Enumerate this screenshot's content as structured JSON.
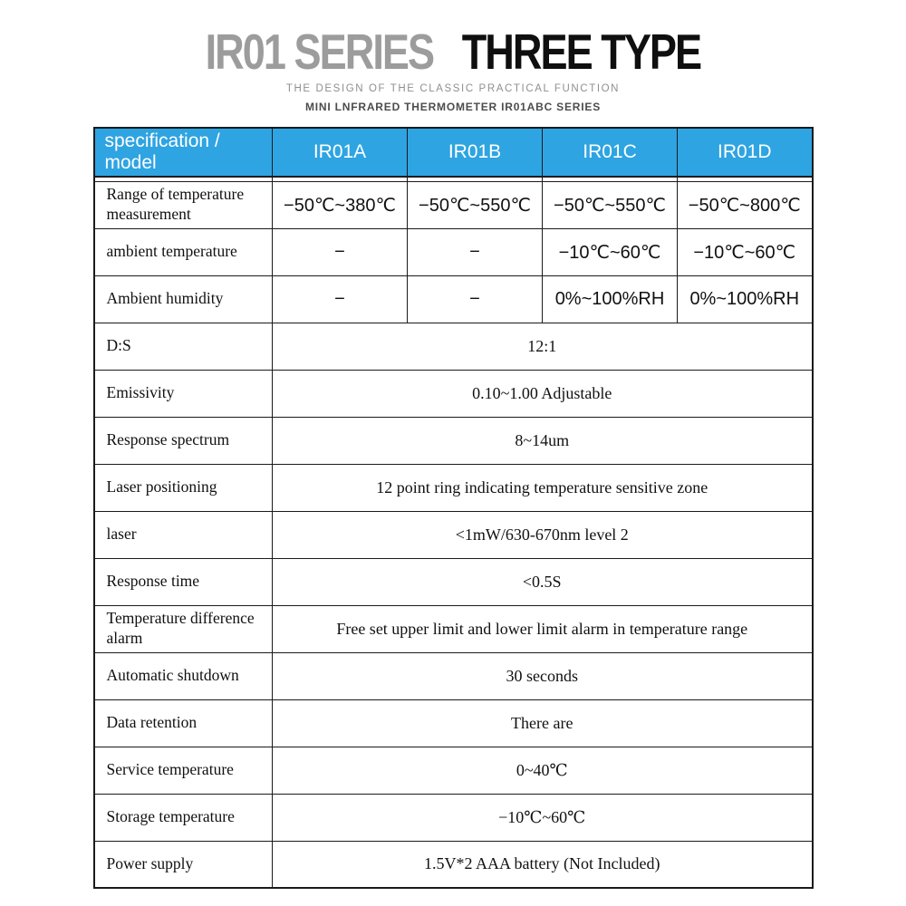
{
  "page": {
    "title_gray": "IR01 SERIES",
    "title_black": "THREE TYPE",
    "subtitle1": "THE DESIGN OF THE CLASSIC PRACTICAL FUNCTION",
    "subtitle2": "MINI LNFRARED THERMOMETER IR01ABC SERIES"
  },
  "colors": {
    "header_bg": "#2ea4e2",
    "header_text": "#ffffff",
    "title_gray": "#9c9c9c",
    "title_black": "#0f0f0f",
    "border": "#1a1a1a"
  },
  "table": {
    "header": {
      "spec_label": "specification / model",
      "models": [
        "IR01A",
        "IR01B",
        "IR01C",
        "IR01D"
      ]
    },
    "rows": [
      {
        "label": "Range of temperature measurement",
        "type": "per_model",
        "values": [
          "−50℃~380℃",
          "−50℃~550℃",
          "−50℃~550℃",
          "−50℃~800℃"
        ]
      },
      {
        "label": "ambient temperature",
        "type": "per_model",
        "values": [
          "−",
          "−",
          "−10℃~60℃",
          "−10℃~60℃"
        ]
      },
      {
        "label": "Ambient humidity",
        "type": "per_model",
        "values": [
          "−",
          "−",
          "0%~100%RH",
          "0%~100%RH"
        ]
      },
      {
        "label": "D:S",
        "type": "span",
        "value": "12:1"
      },
      {
        "label": "Emissivity",
        "type": "span",
        "value": "0.10~1.00 Adjustable"
      },
      {
        "label": "Response spectrum",
        "type": "span",
        "value": "8~14um"
      },
      {
        "label": "Laser positioning",
        "type": "span",
        "value": "12 point ring indicating temperature sensitive zone"
      },
      {
        "label": "laser",
        "type": "span",
        "value": "<1mW/630-670nm  level 2"
      },
      {
        "label": "Response time",
        "type": "span",
        "value": "<0.5S"
      },
      {
        "label": "Temperature difference alarm",
        "type": "span",
        "value": "Free set upper limit and lower limit alarm in temperature range"
      },
      {
        "label": "Automatic shutdown",
        "type": "span",
        "value": "30 seconds"
      },
      {
        "label": "Data retention",
        "type": "span",
        "value": "There are"
      },
      {
        "label": "Service temperature",
        "type": "span",
        "value": "0~40℃"
      },
      {
        "label": "Storage temperature",
        "type": "span",
        "value": "−10℃~60℃"
      },
      {
        "label": "Power supply",
        "type": "span",
        "value": "1.5V*2 AAA battery (Not Included)"
      }
    ]
  }
}
